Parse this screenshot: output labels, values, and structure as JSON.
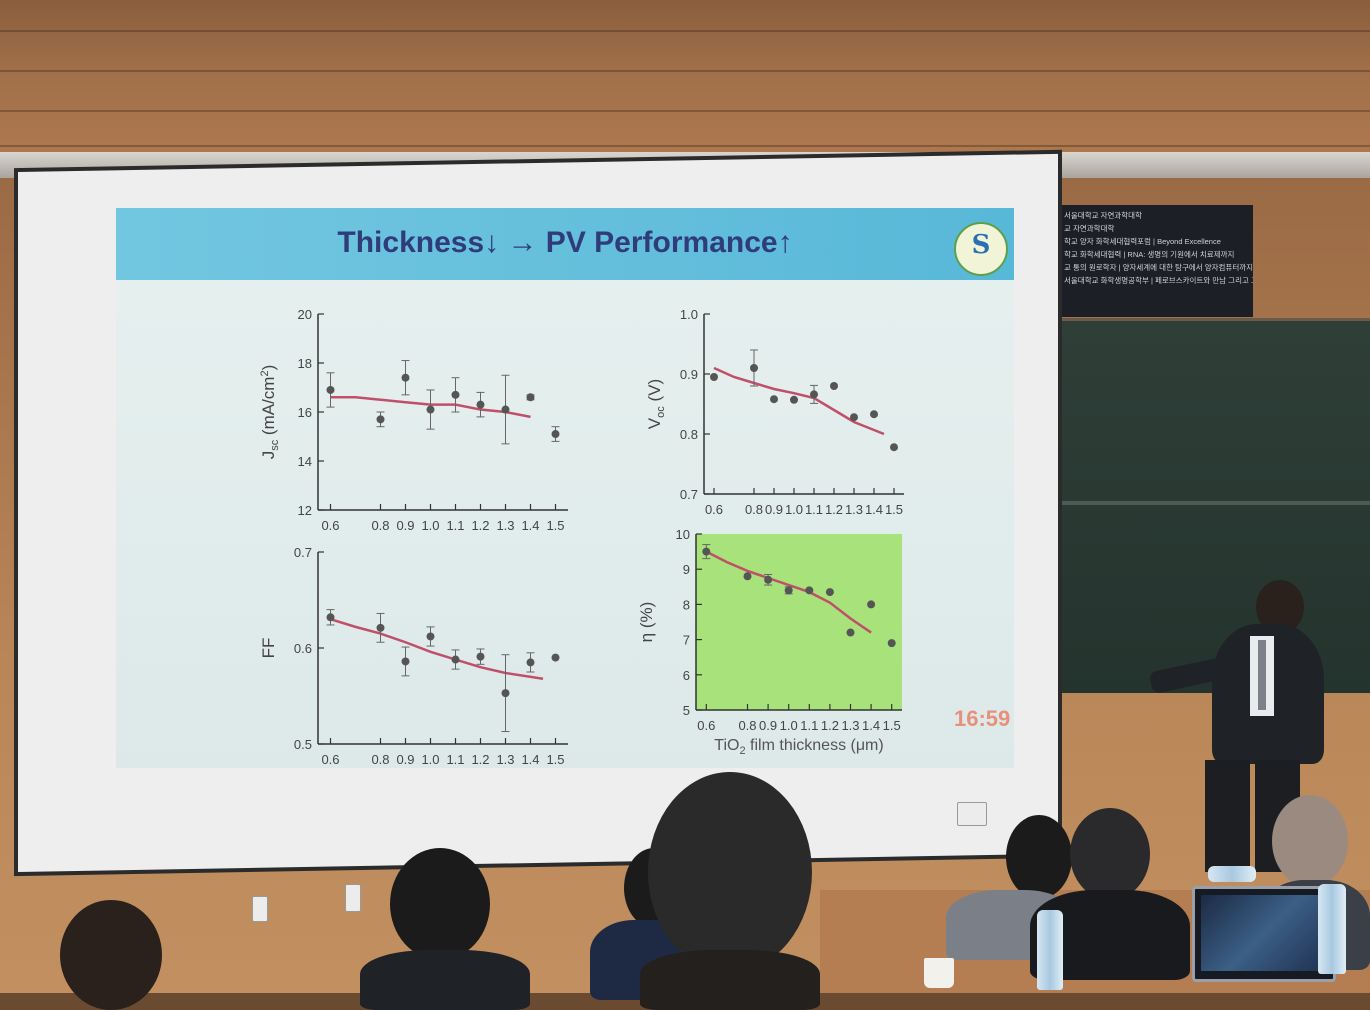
{
  "slide": {
    "title": "Thickness↓ → PV Performance↑",
    "clock": "16:59"
  },
  "banner": {
    "lines": [
      "서울대학교 자연과학대학",
      "교 자연과학대학",
      "학교 양자 화학세대협력포럼 | Beyond Excellence",
      "학교 화학세대협력 | RNA: 생명의 기원에서 치료제까지",
      "교 통의 원로학자 | 양자세계에 대한 탐구에서 양자컴퓨터까지",
      "서울대학교 화학생명공학부 | 페로브스카이트와 만남 그리고 그 이후"
    ]
  },
  "colors": {
    "header": "#62bfdc",
    "title": "#2f3c79",
    "fit_line": "#c0506a",
    "marker": "#555555",
    "eta_panel": "#a8e27a",
    "clock": "#e8907a"
  },
  "chart_data": [
    {
      "type": "scatter",
      "ylabel": "J",
      "ylabel_sub": "sc",
      "ylabel_unit": " (mA/cm",
      "ylabel_sup": "2",
      "ylabel_close": ")",
      "xlabel": "",
      "x": [
        0.6,
        0.8,
        0.9,
        1.0,
        1.1,
        1.2,
        1.3,
        1.4,
        1.5
      ],
      "y": [
        16.9,
        15.7,
        17.4,
        16.1,
        16.7,
        16.3,
        16.1,
        16.6,
        15.1
      ],
      "err": [
        0.7,
        0.3,
        0.7,
        0.8,
        0.7,
        0.5,
        1.4,
        0.1,
        0.3
      ],
      "fit": [
        16.6,
        16.6,
        16.5,
        16.4,
        16.3,
        16.3,
        16.1,
        16.0,
        15.8
      ],
      "fit_x": [
        0.6,
        0.7,
        0.8,
        0.9,
        1.0,
        1.1,
        1.2,
        1.3,
        1.4
      ],
      "ylim": [
        12,
        20
      ],
      "yticks": [
        12,
        14,
        16,
        18,
        20
      ],
      "xticks": [
        "0.6",
        "0.8",
        "0.9",
        "1.0",
        "1.1",
        "1.2",
        "1.3",
        "1.4",
        "1.5"
      ],
      "green": false
    },
    {
      "type": "scatter",
      "ylabel": "V",
      "ylabel_sub": "oc",
      "ylabel_unit": " (V)",
      "ylabel_sup": "",
      "ylabel_close": "",
      "xlabel": "",
      "x": [
        0.6,
        0.8,
        0.9,
        1.0,
        1.1,
        1.2,
        1.3,
        1.4,
        1.5
      ],
      "y": [
        0.895,
        0.91,
        0.858,
        0.857,
        0.866,
        0.88,
        0.828,
        0.833,
        0.778
      ],
      "err": [
        0.0,
        0.03,
        0.0,
        0.0,
        0.015,
        0.0,
        0.0,
        0.0,
        0.0
      ],
      "fit": [
        0.91,
        0.895,
        0.885,
        0.875,
        0.868,
        0.86,
        0.84,
        0.82,
        0.8
      ],
      "fit_x": [
        0.6,
        0.7,
        0.8,
        0.9,
        1.0,
        1.1,
        1.2,
        1.3,
        1.45
      ],
      "ylim": [
        0.7,
        1.0
      ],
      "yticks": [
        0.7,
        0.8,
        0.9,
        1.0
      ],
      "xticks": [
        "0.6",
        "0.8",
        "0.9",
        "1.0",
        "1.1",
        "1.2",
        "1.3",
        "1.4",
        "1.5"
      ],
      "green": false
    },
    {
      "type": "scatter",
      "ylabel": "FF",
      "ylabel_sub": "",
      "ylabel_unit": "",
      "ylabel_sup": "",
      "ylabel_close": "",
      "xlabel": "TiO",
      "xlabel_sub": "2",
      "xlabel_rest": " film thickness (μm)",
      "x": [
        0.6,
        0.8,
        0.9,
        1.0,
        1.1,
        1.2,
        1.3,
        1.4,
        1.5
      ],
      "y": [
        0.632,
        0.621,
        0.586,
        0.612,
        0.588,
        0.591,
        0.553,
        0.585,
        0.59
      ],
      "err": [
        0.008,
        0.015,
        0.015,
        0.01,
        0.01,
        0.008,
        0.04,
        0.01,
        0.0
      ],
      "fit": [
        0.63,
        0.622,
        0.615,
        0.606,
        0.596,
        0.588,
        0.58,
        0.574,
        0.568
      ],
      "fit_x": [
        0.6,
        0.7,
        0.8,
        0.9,
        1.0,
        1.1,
        1.2,
        1.3,
        1.45
      ],
      "ylim": [
        0.5,
        0.7
      ],
      "yticks": [
        0.5,
        0.6,
        0.7
      ],
      "xticks": [
        "0.6",
        "0.8",
        "0.9",
        "1.0",
        "1.1",
        "1.2",
        "1.3",
        "1.4",
        "1.5"
      ],
      "green": false
    },
    {
      "type": "scatter",
      "ylabel": "η (%)",
      "ylabel_sub": "",
      "ylabel_unit": "",
      "ylabel_sup": "",
      "ylabel_close": "",
      "xlabel": "TiO",
      "xlabel_sub": "2",
      "xlabel_rest": " film thickness (μm)",
      "x": [
        0.6,
        0.8,
        0.9,
        1.0,
        1.1,
        1.2,
        1.3,
        1.4,
        1.5
      ],
      "y": [
        9.5,
        8.8,
        8.7,
        8.4,
        8.4,
        8.35,
        7.2,
        8.0,
        6.9
      ],
      "err": [
        0.2,
        0.0,
        0.15,
        0.1,
        0.0,
        0.0,
        0.0,
        0.0,
        0.0
      ],
      "fit": [
        9.5,
        9.2,
        8.95,
        8.75,
        8.55,
        8.35,
        8.05,
        7.6,
        7.2
      ],
      "fit_x": [
        0.6,
        0.7,
        0.8,
        0.9,
        1.0,
        1.1,
        1.2,
        1.3,
        1.4
      ],
      "ylim": [
        5,
        10
      ],
      "yticks": [
        5,
        6,
        7,
        8,
        9,
        10
      ],
      "xticks": [
        "0.6",
        "0.8",
        "0.9",
        "1.0",
        "1.1",
        "1.2",
        "1.3",
        "1.4",
        "1.5"
      ],
      "green": true
    }
  ]
}
